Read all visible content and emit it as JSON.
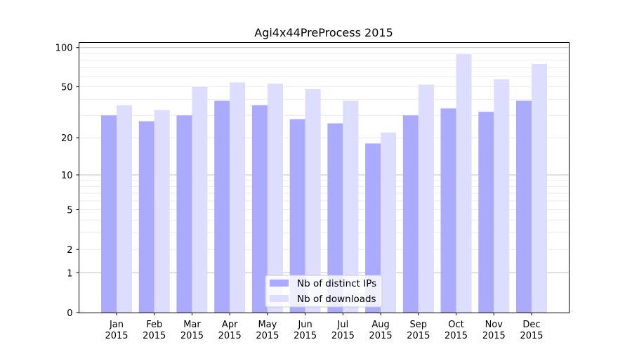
{
  "chart_data": {
    "type": "bar",
    "title": "Agi4x44PreProcess 2015",
    "xlabel": "",
    "ylabel": "",
    "yscale": "log(1+y)",
    "ylim": [
      0,
      110
    ],
    "yticks": [
      0,
      1,
      2,
      5,
      10,
      20,
      50,
      100
    ],
    "grid": "horizontal, major at 1/10/100 and minor between",
    "legend_position": "bottom-center",
    "categories": [
      "Jan\n2015",
      "Feb\n2015",
      "Mar\n2015",
      "Apr\n2015",
      "May\n2015",
      "Jun\n2015",
      "Jul\n2015",
      "Aug\n2015",
      "Sep\n2015",
      "Oct\n2015",
      "Nov\n2015",
      "Dec\n2015"
    ],
    "series": [
      {
        "name": "Nb of distinct IPs",
        "color": "#aaaaff",
        "values": [
          30,
          27,
          30,
          39,
          36,
          28,
          26,
          18,
          30,
          34,
          32,
          39
        ]
      },
      {
        "name": "Nb of downloads",
        "color": "#ddddff",
        "values": [
          36,
          33,
          50,
          54,
          53,
          48,
          39,
          22,
          52,
          89,
          57,
          75
        ]
      }
    ]
  }
}
